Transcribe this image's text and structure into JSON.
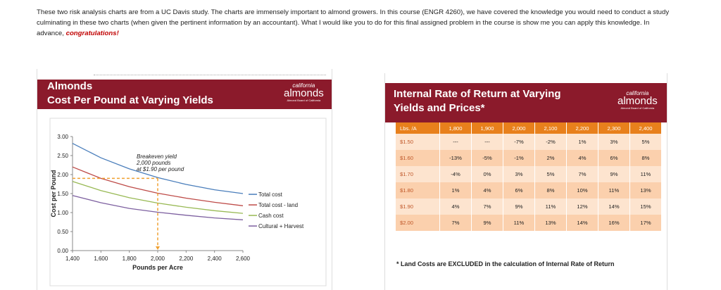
{
  "intro": {
    "text": "These two risk analysis charts are from a UC Davis study. The charts are immensely important to almond growers. In this course (ENGR 4260), we have covered the knowledge you would need to conduct a study culminating in these two charts (when given the pertinent information by an accountant). What I would like you to do for this final assigned problem in the course is show me you can apply this knowledge.  In advance, ",
    "congrats": "congratulations!"
  },
  "logo": {
    "line1": "california",
    "line2": "almonds",
    "line3": "Almond Board of California"
  },
  "left_slide": {
    "title_line1": "Almonds",
    "title_line2": "Cost Per Pound at Varying Yields"
  },
  "chart_data": {
    "type": "line",
    "xlabel": "Pounds per Acre",
    "ylabel": "Cost per Pound",
    "xlim": [
      1400,
      2600
    ],
    "ylim": [
      0,
      3.0
    ],
    "xticks": [
      1400,
      1600,
      1800,
      2000,
      2200,
      2400,
      2600
    ],
    "xtick_labels": [
      "1,400",
      "1,600",
      "1,800",
      "2,000",
      "2,200",
      "2,400",
      "2,600"
    ],
    "yticks": [
      0,
      0.5,
      1.0,
      1.5,
      2.0,
      2.5,
      3.0
    ],
    "ytick_labels": [
      "0.00",
      "0.50",
      "1.00",
      "1.50",
      "2.00",
      "2.50",
      "3.00"
    ],
    "x": [
      1400,
      1600,
      1800,
      2000,
      2200,
      2400,
      2600
    ],
    "series": [
      {
        "name": "Total cost",
        "color": "#4a7ebb",
        "values": [
          2.82,
          2.44,
          2.15,
          1.92,
          1.74,
          1.6,
          1.5
        ]
      },
      {
        "name": "Total cost - land",
        "color": "#be4b48",
        "values": [
          2.2,
          1.9,
          1.68,
          1.51,
          1.38,
          1.27,
          1.18
        ]
      },
      {
        "name": "Cash cost",
        "color": "#98b954",
        "values": [
          1.82,
          1.58,
          1.39,
          1.25,
          1.14,
          1.05,
          0.98
        ]
      },
      {
        "name": "Cultural + Harvest",
        "color": "#7d60a0",
        "values": [
          1.45,
          1.26,
          1.11,
          1.01,
          0.93,
          0.86,
          0.81
        ]
      }
    ],
    "breakeven": {
      "x": 2000,
      "y": 1.9,
      "color": "#f0a030"
    },
    "annotation": [
      "Breakeven yield",
      "2,000 pounds",
      "at $1.90 per pound"
    ],
    "legend_position": "right"
  },
  "right_slide": {
    "title_line1": "Internal Rate of Return at Varying",
    "title_line2": "Yields and Prices*",
    "header_label": "Lbs. /A",
    "columns": [
      "1,800",
      "1,900",
      "2,000",
      "2,100",
      "2,200",
      "2,300",
      "2,400"
    ],
    "rows": [
      {
        "price": "$1.50",
        "cells": [
          "---",
          "---",
          "-7%",
          "-2%",
          "1%",
          "3%",
          "5%"
        ]
      },
      {
        "price": "$1.60",
        "cells": [
          "-13%",
          "-5%",
          "-1%",
          "2%",
          "4%",
          "6%",
          "8%"
        ]
      },
      {
        "price": "$1.70",
        "cells": [
          "-4%",
          "0%",
          "3%",
          "5%",
          "7%",
          "9%",
          "11%"
        ]
      },
      {
        "price": "$1.80",
        "cells": [
          "1%",
          "4%",
          "6%",
          "8%",
          "10%",
          "11%",
          "13%"
        ]
      },
      {
        "price": "$1.90",
        "cells": [
          "4%",
          "7%",
          "9%",
          "11%",
          "12%",
          "14%",
          "15%"
        ]
      },
      {
        "price": "$2.00",
        "cells": [
          "7%",
          "9%",
          "11%",
          "13%",
          "14%",
          "16%",
          "17%"
        ]
      }
    ],
    "footnote": "* Land Costs are EXCLUDED in the calculation of Internal Rate of Return"
  }
}
